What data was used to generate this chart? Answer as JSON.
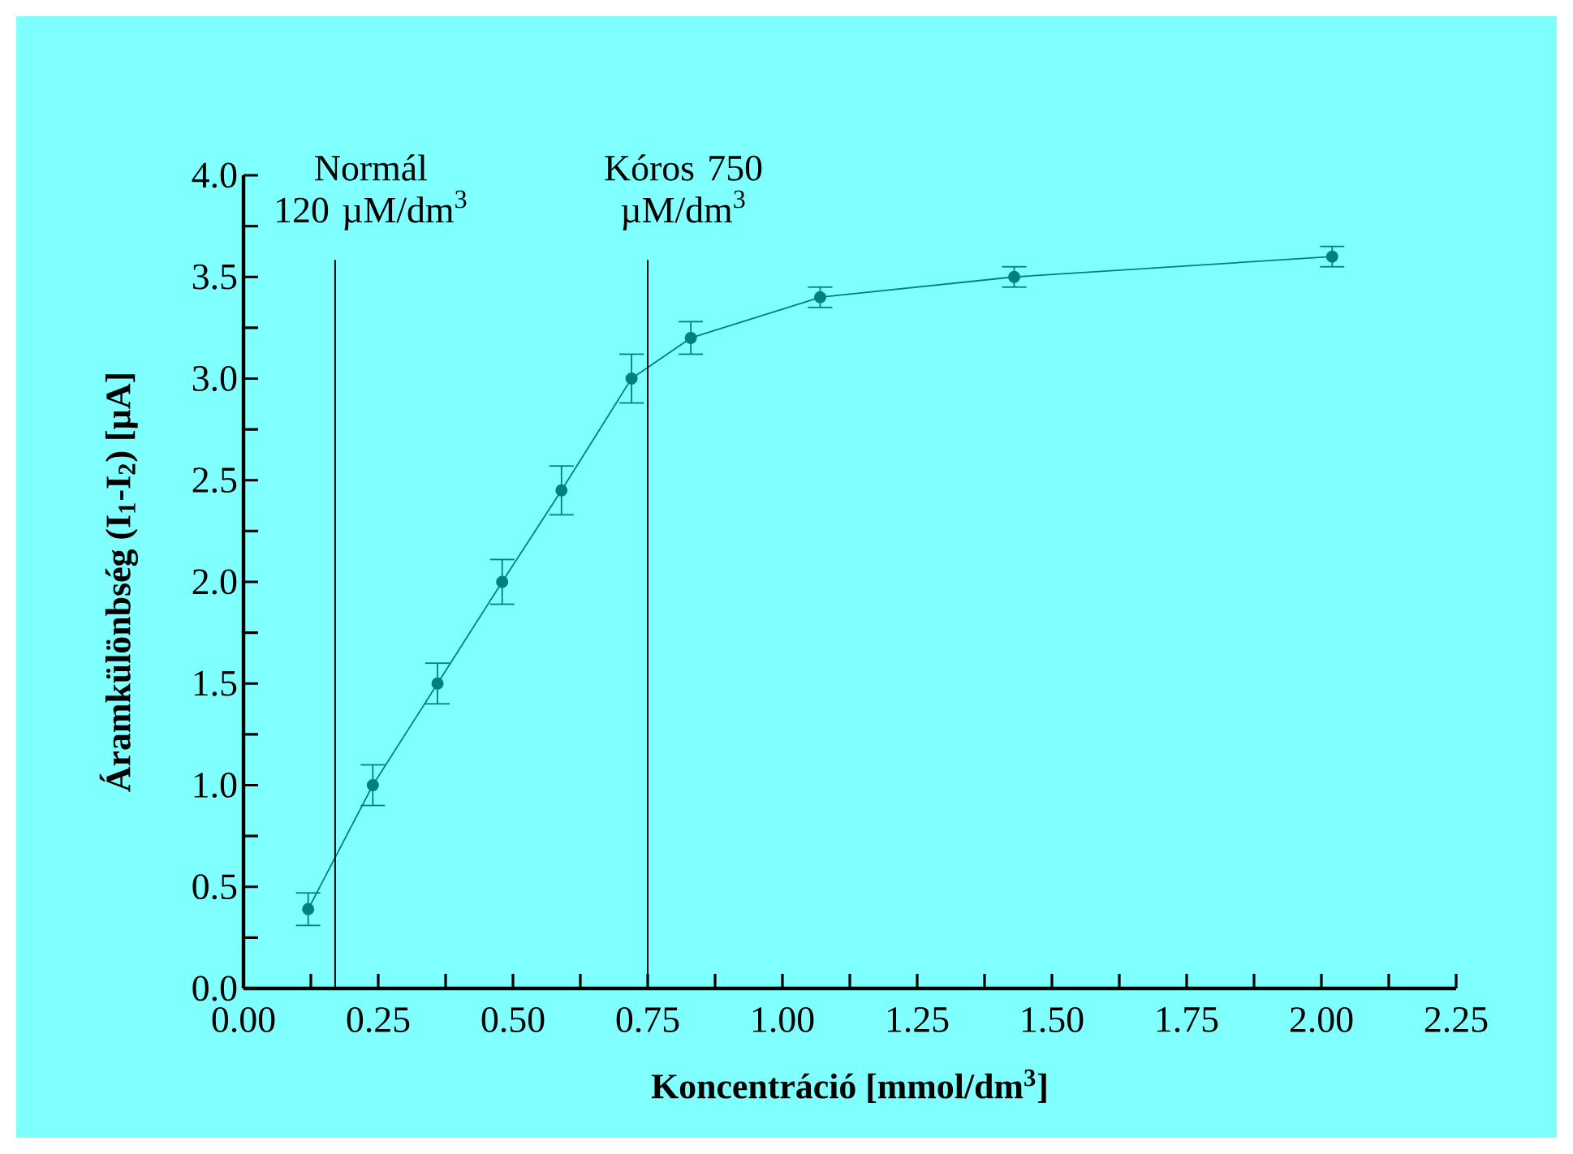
{
  "chart_data": {
    "type": "line",
    "xlabel": "Koncentráció [mmol/dm$^{3}$]",
    "ylabel": "Áramkülönbség (I$_{1}$-I$_{2}$) [µA]",
    "x": [
      0.12,
      0.24,
      0.36,
      0.48,
      0.59,
      0.72,
      0.83,
      1.07,
      1.43,
      2.02
    ],
    "series": [
      {
        "color": "#008080",
        "values": [
          0.39,
          1.0,
          1.5,
          2.0,
          2.45,
          3.0,
          3.2,
          3.4,
          3.5,
          3.6
        ],
        "errors": [
          0.08,
          0.1,
          0.1,
          0.11,
          0.12,
          0.12,
          0.08,
          0.05,
          0.05,
          0.05
        ]
      }
    ],
    "marker": "circle",
    "line_style": "solid",
    "grid": false,
    "xlim": [
      0,
      2.25
    ],
    "ylim": [
      0,
      4
    ],
    "xticks": [
      {
        "value": 0,
        "label": "0.00"
      },
      {
        "value": 0.125,
        "label": null
      },
      {
        "value": 0.25,
        "label": "0.25"
      },
      {
        "value": 0.375,
        "label": null
      },
      {
        "value": 0.5,
        "label": "0.50"
      },
      {
        "value": 0.625,
        "label": null
      },
      {
        "value": 0.75,
        "label": "0.75"
      },
      {
        "value": 0.875,
        "label": null
      },
      {
        "value": 1,
        "label": "1.00"
      },
      {
        "value": 1.125,
        "label": null
      },
      {
        "value": 1.25,
        "label": "1.25"
      },
      {
        "value": 1.375,
        "label": null
      },
      {
        "value": 1.5,
        "label": "1.50"
      },
      {
        "value": 1.625,
        "label": null
      },
      {
        "value": 1.75,
        "label": "1.75"
      },
      {
        "value": 1.875,
        "label": null
      },
      {
        "value": 2,
        "label": "2.00"
      },
      {
        "value": 2.125,
        "label": null
      },
      {
        "value": 2.25,
        "label": "2.25"
      }
    ],
    "yticks": [
      {
        "value": 0,
        "label": "0.0"
      },
      {
        "value": 0.25,
        "label": null
      },
      {
        "value": 0.5,
        "label": "0.5"
      },
      {
        "value": 0.75,
        "label": null
      },
      {
        "value": 1,
        "label": "1.0"
      },
      {
        "value": 1.25,
        "label": null
      },
      {
        "value": 1.5,
        "label": "1.5"
      },
      {
        "value": 1.75,
        "label": null
      },
      {
        "value": 2,
        "label": "2.0"
      },
      {
        "value": 2.25,
        "label": null
      },
      {
        "value": 2.5,
        "label": "2.5"
      },
      {
        "value": 2.75,
        "label": null
      },
      {
        "value": 3,
        "label": "3.0"
      },
      {
        "value": 3.25,
        "label": null
      },
      {
        "value": 3.5,
        "label": "3.5"
      },
      {
        "value": 3.75,
        "label": null
      },
      {
        "value": 4,
        "label": "4.0"
      }
    ],
    "ref_lines": [
      {
        "axis": "x",
        "value": 0.17,
        "label": "Normál 120 µM/dm$^{3}$",
        "color": "#000000",
        "line_style": "solid"
      },
      {
        "axis": "x",
        "value": 0.75,
        "label": "Kóros 750 µM/dm$^{3}$",
        "color": "#000000",
        "line_style": "solid"
      }
    ]
  }
}
